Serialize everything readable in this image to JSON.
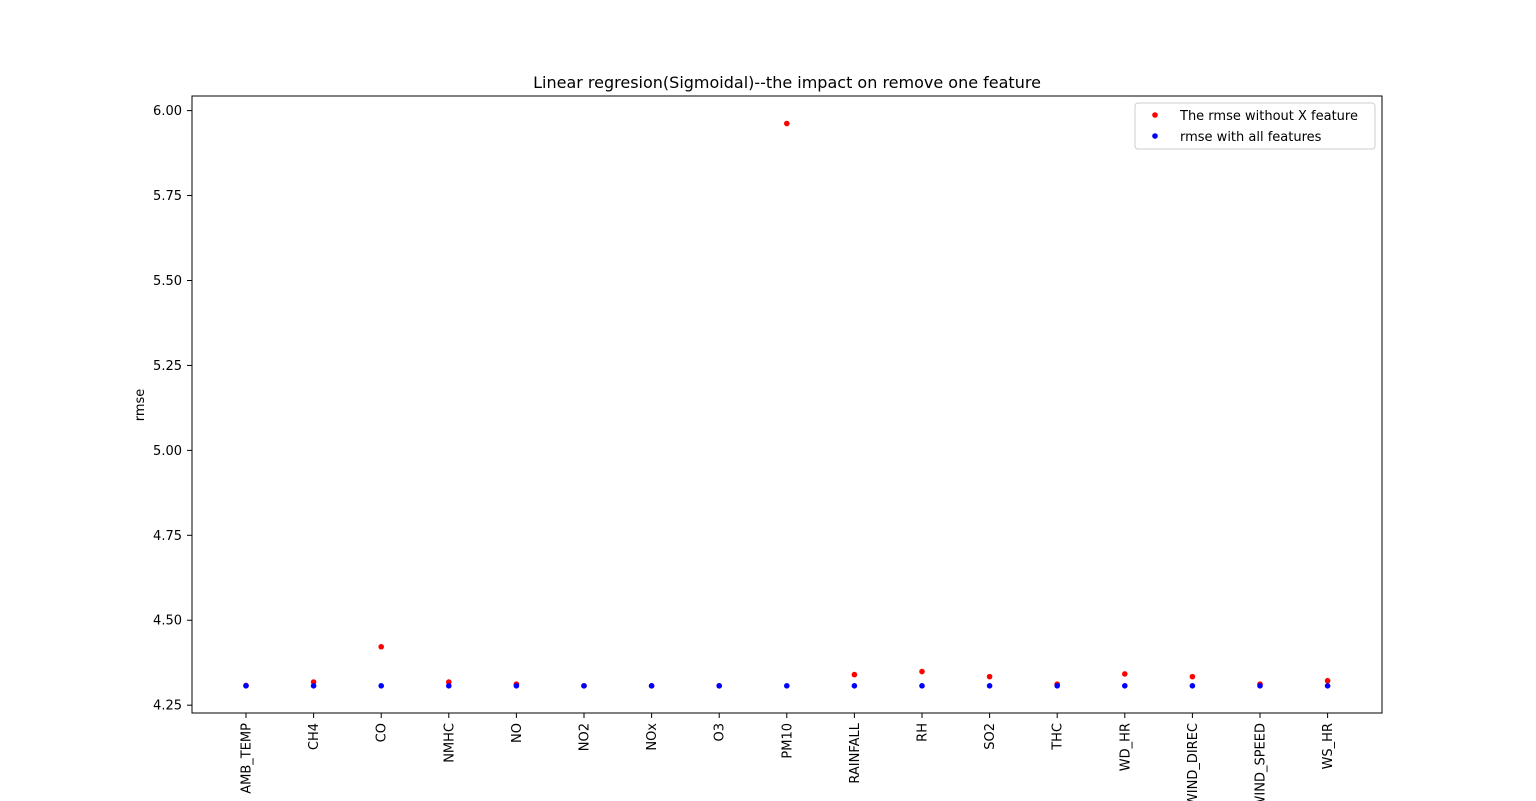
{
  "chart_data": {
    "type": "scatter",
    "title": "Linear regresion(Sigmoidal)--the impact on remove one feature",
    "xlabel": "",
    "ylabel": "rmse",
    "categories": [
      "AMB_TEMP",
      "CH4",
      "CO",
      "NMHC",
      "NO",
      "NO2",
      "NOx",
      "O3",
      "PM10",
      "RAINFALL",
      "RH",
      "SO2",
      "THC",
      "WD_HR",
      "WIND_DIREC",
      "WIND_SPEED",
      "WS_HR"
    ],
    "ylim": [
      4.227,
      6.043
    ],
    "yticks": [
      "4.25",
      "4.50",
      "4.75",
      "5.00",
      "5.25",
      "5.50",
      "5.75",
      "6.00"
    ],
    "grid": false,
    "legend_position": "top-right",
    "series": [
      {
        "name": "The rmse without X feature",
        "color": "#ff0000",
        "values": [
          4.308,
          4.318,
          4.422,
          4.318,
          4.312,
          4.307,
          4.307,
          4.307,
          5.962,
          4.34,
          4.349,
          4.334,
          4.312,
          4.342,
          4.334,
          4.312,
          4.322
        ]
      },
      {
        "name": "rmse with all features",
        "color": "#0000ff",
        "values": [
          4.307,
          4.307,
          4.307,
          4.307,
          4.307,
          4.307,
          4.307,
          4.307,
          4.307,
          4.307,
          4.307,
          4.307,
          4.307,
          4.307,
          4.307,
          4.307,
          4.307
        ]
      }
    ]
  }
}
